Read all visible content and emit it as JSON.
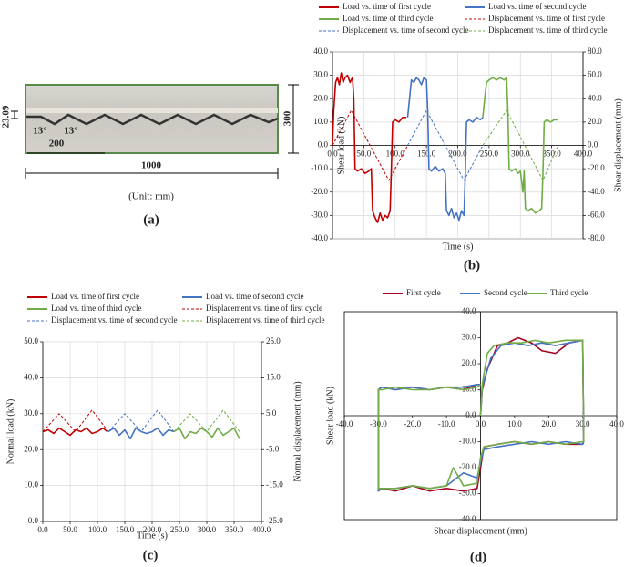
{
  "photo_panel": {
    "labels": {
      "thickness": "23.09",
      "height": "300",
      "angle_left": "13°",
      "angle_right": "13°",
      "tooth_length": "200",
      "length": "1000",
      "unit": "(Unit: mm)"
    },
    "caption": "(a)"
  },
  "chart_data": [
    {
      "type": "line",
      "caption": "(b)",
      "xlabel": "Time (s)",
      "ylabel": "Shear load (kN)",
      "y2label": "Shear displacement (mm)",
      "grid": true,
      "legend": "top",
      "xlim": [
        0,
        400
      ],
      "ylim": [
        -40,
        40
      ],
      "y2lim": [
        -80,
        80
      ],
      "xticks": [
        {
          "value": 0,
          "label": "0.0"
        },
        {
          "value": 50,
          "label": "50.0"
        },
        {
          "value": 100,
          "label": "100.0"
        },
        {
          "value": 150,
          "label": "150.0"
        },
        {
          "value": 200,
          "label": "200.0"
        },
        {
          "value": 250,
          "label": "250.0"
        },
        {
          "value": 300,
          "label": "300.0"
        },
        {
          "value": 350,
          "label": "350.0"
        },
        {
          "value": 400,
          "label": "400.0"
        }
      ],
      "yticks": [
        {
          "value": -40,
          "label": "-40.0"
        },
        {
          "value": -30,
          "label": "-30.0"
        },
        {
          "value": -20,
          "label": "-20.0"
        },
        {
          "value": -10,
          "label": "-10.0"
        },
        {
          "value": 0,
          "label": "0.0"
        },
        {
          "value": 10,
          "label": "10.0"
        },
        {
          "value": 20,
          "label": "20.0"
        },
        {
          "value": 30,
          "label": "30.0"
        },
        {
          "value": 40,
          "label": "40.0"
        }
      ],
      "y2ticks": [
        {
          "value": -80,
          "label": "-80.0"
        },
        {
          "value": -60,
          "label": "-60.0"
        },
        {
          "value": -40,
          "label": "-40.0"
        },
        {
          "value": -20,
          "label": "-20.0"
        },
        {
          "value": 0,
          "label": "0.0"
        },
        {
          "value": 20,
          "label": "20.0"
        },
        {
          "value": 40,
          "label": "40.0"
        },
        {
          "value": 60,
          "label": "60.0"
        },
        {
          "value": 80,
          "label": "80.0"
        }
      ],
      "series": [
        {
          "name": "Load vs. time of first cycle",
          "color": "#c00000",
          "style": "solid",
          "axis": "y",
          "x": [
            0,
            2,
            5,
            8,
            11,
            14,
            17,
            20,
            24,
            28,
            32,
            34,
            36,
            40,
            46,
            52,
            58,
            62,
            64,
            68,
            72,
            76,
            80,
            84,
            88,
            92,
            94,
            96,
            100,
            106,
            112,
            118
          ],
          "values": [
            0,
            15,
            27,
            29,
            26,
            31,
            27,
            29,
            30,
            27,
            29,
            20,
            -10,
            -11,
            -10,
            -12,
            -11,
            -10,
            -28,
            -31,
            -33,
            -29,
            -32,
            -30,
            -31,
            -28,
            -10,
            10,
            11,
            10,
            12,
            12
          ]
        },
        {
          "name": "Load vs. time of second cycle",
          "color": "#4472c4",
          "style": "solid",
          "axis": "y",
          "x": [
            120,
            123,
            126,
            130,
            134,
            138,
            142,
            146,
            150,
            152,
            154,
            158,
            164,
            170,
            176,
            180,
            182,
            186,
            190,
            194,
            198,
            202,
            206,
            210,
            212,
            214,
            218,
            224,
            230,
            236,
            240
          ],
          "values": [
            12,
            20,
            28,
            27,
            29,
            28,
            26,
            29,
            28,
            15,
            -10,
            -11,
            -9,
            -11,
            -10,
            -12,
            -28,
            -30,
            -27,
            -31,
            -29,
            -32,
            -28,
            -30,
            -12,
            10,
            11,
            10,
            12,
            11,
            12
          ]
        },
        {
          "name": "Load vs. time of third cycle",
          "color": "#70ad47",
          "style": "solid",
          "axis": "y",
          "x": [
            240,
            243,
            246,
            250,
            256,
            262,
            268,
            274,
            278,
            280,
            282,
            286,
            292,
            296,
            300,
            304,
            306,
            308,
            312,
            318,
            324,
            330,
            334,
            336,
            338,
            342,
            348,
            354,
            360
          ],
          "values": [
            12,
            20,
            27,
            28,
            29,
            28,
            29,
            28,
            29,
            15,
            -10,
            -11,
            -10,
            -12,
            -11,
            -20,
            -11,
            -27,
            -28,
            -27,
            -29,
            -28,
            -27,
            -12,
            10,
            11,
            10,
            11,
            11
          ]
        },
        {
          "name": "Displacement vs. time of first cycle",
          "color": "#c00000",
          "style": "dashed",
          "axis": "y2",
          "x": [
            0,
            30,
            90,
            120
          ],
          "values": [
            0,
            30,
            -30,
            0
          ]
        },
        {
          "name": "Displacement vs. time of second cycle",
          "color": "#4472c4",
          "style": "dashed",
          "axis": "y2",
          "x": [
            120,
            150,
            210,
            240
          ],
          "values": [
            0,
            30,
            -30,
            0
          ]
        },
        {
          "name": "Displacement vs. time of third cycle",
          "color": "#70ad47",
          "style": "dashed",
          "axis": "y2",
          "x": [
            240,
            278,
            336,
            360
          ],
          "values": [
            0,
            30,
            -30,
            0
          ]
        }
      ]
    },
    {
      "type": "line",
      "caption": "(c)",
      "xlabel": "Time (s)",
      "ylabel": "Normal load (kN)",
      "y2label": "Normal displacement (mm)",
      "grid": true,
      "legend": "top",
      "xlim": [
        0,
        400
      ],
      "ylim": [
        0,
        50
      ],
      "y2lim": [
        -25,
        25
      ],
      "xticks": [
        {
          "value": 0,
          "label": "0.0"
        },
        {
          "value": 50,
          "label": "50.0"
        },
        {
          "value": 100,
          "label": "100.0"
        },
        {
          "value": 150,
          "label": "150.0"
        },
        {
          "value": 200,
          "label": "200.0"
        },
        {
          "value": 250,
          "label": "250.0"
        },
        {
          "value": 300,
          "label": "300.0"
        },
        {
          "value": 350,
          "label": "350.0"
        },
        {
          "value": 400,
          "label": "400.0"
        }
      ],
      "yticks": [
        {
          "value": 0,
          "label": "0.0"
        },
        {
          "value": 10,
          "label": "10.0"
        },
        {
          "value": 20,
          "label": "20.0"
        },
        {
          "value": 30,
          "label": "30.0"
        },
        {
          "value": 40,
          "label": "40.0"
        },
        {
          "value": 50,
          "label": "50.0"
        }
      ],
      "y2ticks": [
        {
          "value": -25,
          "label": "-25.0"
        },
        {
          "value": -15,
          "label": "-15.0"
        },
        {
          "value": -5,
          "label": "-5.0"
        },
        {
          "value": 5,
          "label": "5.0"
        },
        {
          "value": 15,
          "label": "15.0"
        },
        {
          "value": 25,
          "label": "25.0"
        }
      ],
      "series": [
        {
          "name": "Load vs. time of first cycle",
          "color": "#c00000",
          "style": "solid",
          "axis": "y",
          "x": [
            0,
            10,
            20,
            30,
            40,
            50,
            60,
            70,
            80,
            90,
            100,
            110,
            118
          ],
          "values": [
            25,
            25.5,
            24.5,
            26,
            25,
            24,
            25.5,
            25,
            26,
            24.5,
            25,
            26,
            25
          ]
        },
        {
          "name": "Load vs. time of second cycle",
          "color": "#4472c4",
          "style": "solid",
          "axis": "y",
          "x": [
            120,
            130,
            140,
            150,
            160,
            170,
            180,
            190,
            200,
            210,
            220,
            230,
            240
          ],
          "values": [
            25,
            26,
            24,
            25.5,
            23,
            26,
            25,
            24.5,
            25,
            26,
            24,
            25.5,
            25
          ]
        },
        {
          "name": "Load vs. time of third cycle",
          "color": "#70ad47",
          "style": "solid",
          "axis": "y",
          "x": [
            240,
            250,
            260,
            270,
            280,
            290,
            300,
            310,
            320,
            330,
            340,
            350,
            360
          ],
          "values": [
            25,
            26,
            23,
            25,
            24.5,
            26,
            25,
            23.5,
            26,
            24,
            25,
            26,
            23
          ]
        },
        {
          "name": "Displacement vs. time of first cycle",
          "color": "#c00000",
          "style": "dashed",
          "axis": "y2",
          "x": [
            0,
            30,
            60,
            90,
            120
          ],
          "values": [
            0,
            5,
            0,
            6,
            0
          ]
        },
        {
          "name": "Displacement vs. time of second cycle",
          "color": "#4472c4",
          "style": "dashed",
          "axis": "y2",
          "x": [
            120,
            150,
            180,
            210,
            240
          ],
          "values": [
            0,
            5,
            0,
            6,
            0
          ]
        },
        {
          "name": "Displacement vs. time of third cycle",
          "color": "#70ad47",
          "style": "dashed",
          "axis": "y2",
          "x": [
            240,
            270,
            300,
            330,
            360
          ],
          "values": [
            0,
            5,
            0,
            6,
            0
          ]
        }
      ]
    },
    {
      "type": "line",
      "caption": "(d)",
      "xlabel": "Shear displacement (mm)",
      "ylabel": "Shear load (kN)",
      "grid": false,
      "legend": "top",
      "xlim": [
        -40,
        40
      ],
      "ylim": [
        -40,
        40
      ],
      "xticks": [
        {
          "value": -40,
          "label": "-40.0"
        },
        {
          "value": -30,
          "label": "-30.0"
        },
        {
          "value": -20,
          "label": "-20.0"
        },
        {
          "value": -10,
          "label": "-10.0"
        },
        {
          "value": 0,
          "label": "0.0"
        },
        {
          "value": 10,
          "label": "10.0"
        },
        {
          "value": 20,
          "label": "20.0"
        },
        {
          "value": 30,
          "label": "30.0"
        },
        {
          "value": 40,
          "label": "40.0"
        }
      ],
      "yticks": [
        {
          "value": -40,
          "label": "-40.0"
        },
        {
          "value": -30,
          "label": "-30.0"
        },
        {
          "value": -20,
          "label": "-20.0"
        },
        {
          "value": -10,
          "label": "-10.0"
        },
        {
          "value": 0,
          "label": "0.0"
        },
        {
          "value": 10,
          "label": "10.0"
        },
        {
          "value": 20,
          "label": "20.0"
        },
        {
          "value": 30,
          "label": "30.0"
        },
        {
          "value": 40,
          "label": "40.0"
        }
      ],
      "series": [
        {
          "name": "First cycle",
          "color": "#a50021",
          "style": "solid",
          "axis": "y",
          "x": [
            0,
            0.5,
            2,
            5,
            8,
            11,
            15,
            18,
            22,
            26,
            30,
            30.3,
            30,
            25,
            20,
            15,
            10,
            5,
            1,
            0,
            -1,
            -5,
            -10,
            -15,
            -20,
            -25,
            -29,
            -30,
            -30,
            -29,
            -25,
            -20,
            -15,
            -10,
            -5,
            -1,
            0
          ],
          "values": [
            0,
            10,
            18,
            27,
            28,
            30,
            28,
            25,
            24,
            28,
            29,
            -10,
            -11,
            -11,
            -10,
            -11,
            -10,
            -11,
            -12,
            -20,
            -28,
            -29,
            -28,
            -29,
            -27,
            -29,
            -28,
            -29,
            10,
            11,
            10,
            11,
            10,
            11,
            10,
            12,
            12
          ]
        },
        {
          "name": "Second cycle",
          "color": "#4472c4",
          "style": "solid",
          "axis": "y",
          "x": [
            0,
            0.5,
            3,
            6,
            10,
            14,
            18,
            22,
            26,
            30,
            30.3,
            30,
            25,
            20,
            15,
            10,
            5,
            1,
            0,
            -1,
            -5,
            -10,
            -15,
            -20,
            -25,
            -29,
            -30,
            -30,
            -29,
            -25,
            -20,
            -15,
            -10,
            -5,
            -1,
            0
          ],
          "values": [
            0,
            11,
            22,
            27,
            28,
            27,
            28,
            27,
            28,
            29,
            -10,
            -11,
            -10,
            -11,
            -10,
            -11,
            -12,
            -13,
            -18,
            -24,
            -22,
            -27,
            -28,
            -27,
            -28,
            -28,
            -29,
            10,
            11,
            10,
            11,
            10,
            11,
            11,
            12,
            12
          ]
        },
        {
          "name": "Third cycle",
          "color": "#70ad47",
          "style": "solid",
          "axis": "y",
          "x": [
            0,
            0.5,
            2,
            4,
            8,
            12,
            16,
            20,
            25,
            30,
            30.3,
            30,
            25,
            20,
            15,
            10,
            5,
            1,
            0,
            -1,
            -5,
            -8,
            -10,
            -15,
            -20,
            -25,
            -29,
            -30,
            -30,
            -29,
            -25,
            -20,
            -15,
            -10,
            -5,
            -1,
            0
          ],
          "values": [
            0,
            12,
            24,
            27,
            28,
            28,
            29,
            28,
            29,
            29,
            -10,
            -10,
            -11,
            -10,
            -11,
            -10,
            -11,
            -12,
            -16,
            -26,
            -27,
            -20,
            -27,
            -28,
            -27,
            -28,
            -28,
            -28,
            10,
            10,
            11,
            10,
            10,
            11,
            10,
            11,
            12
          ]
        }
      ]
    }
  ]
}
